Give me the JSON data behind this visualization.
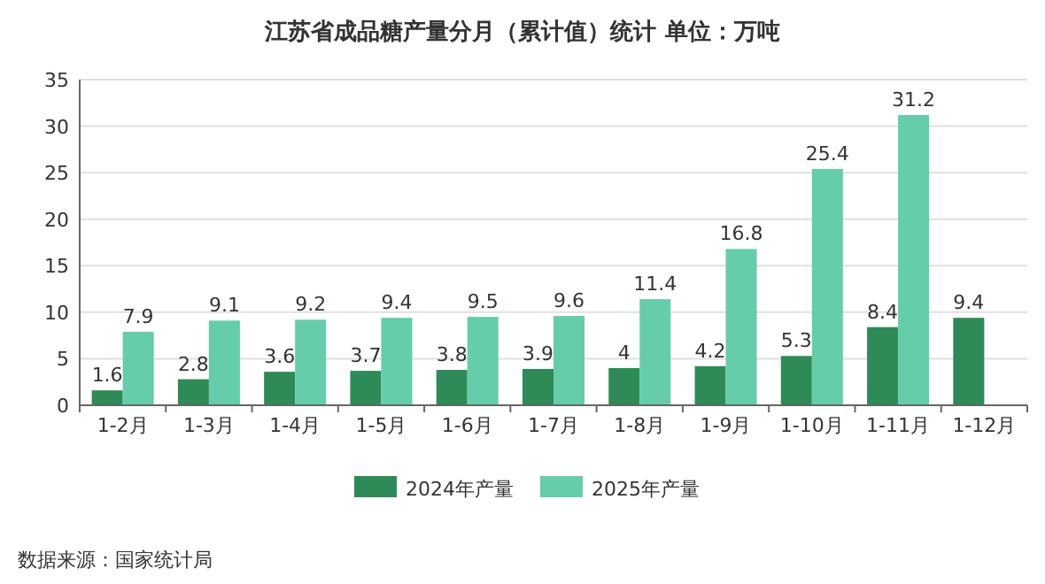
{
  "chart_data": {
    "type": "bar",
    "title": "江苏省成品糖产量分月（累计值）统计 单位：万吨",
    "categories": [
      "1-2月",
      "1-3月",
      "1-4月",
      "1-5月",
      "1-6月",
      "1-7月",
      "1-8月",
      "1-9月",
      "1-10月",
      "1-11月",
      "1-12月"
    ],
    "series": [
      {
        "name": "2024年产量",
        "color": "#2e8b57",
        "values": [
          1.6,
          2.8,
          3.6,
          3.7,
          3.8,
          3.9,
          4,
          4.2,
          5.3,
          8.4,
          9.4
        ]
      },
      {
        "name": "2025年产量",
        "color": "#66cdaa",
        "values": [
          7.9,
          9.1,
          9.2,
          9.4,
          9.5,
          9.6,
          11.4,
          16.8,
          25.4,
          31.2,
          null
        ]
      }
    ],
    "ylim": [
      0,
      35
    ],
    "yticks": [
      0,
      5,
      10,
      15,
      20,
      25,
      30,
      35
    ],
    "grid": "y",
    "legend": "bottom",
    "data_labels": true,
    "annotations": [
      "数据来源：国家统计局"
    ]
  }
}
